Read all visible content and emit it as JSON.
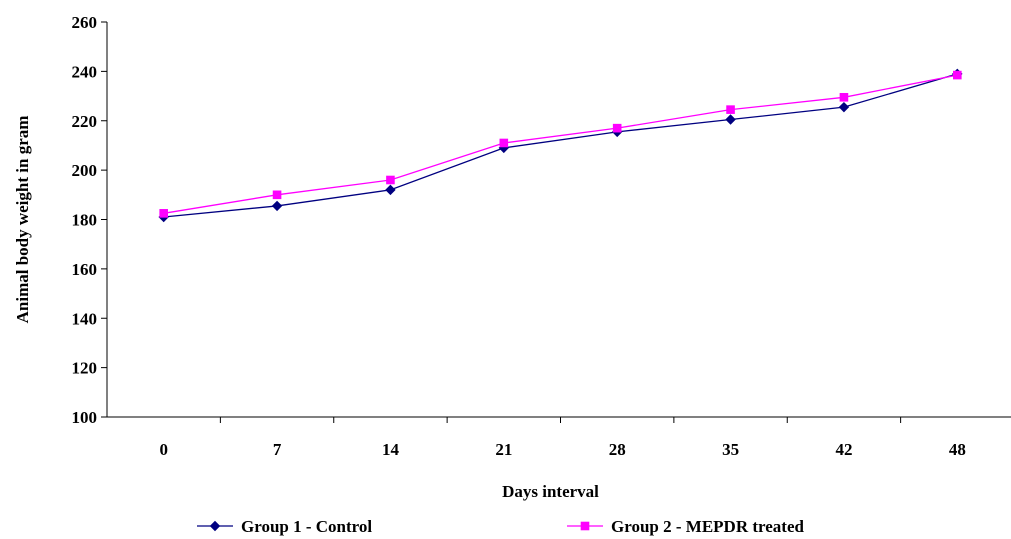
{
  "chart_data": {
    "type": "line",
    "categories": [
      "0",
      "7",
      "14",
      "21",
      "28",
      "35",
      "42",
      "48"
    ],
    "series": [
      {
        "name": "Group 1 - Control",
        "values": [
          181,
          185.5,
          192,
          209,
          215.5,
          220.5,
          225.5,
          239
        ],
        "color": "#000080",
        "marker": "diamond"
      },
      {
        "name": "Group 2 - MEPDR treated",
        "values": [
          182.5,
          190,
          196,
          211,
          217,
          224.5,
          229.5,
          238.5
        ],
        "color": "#ff00ff",
        "marker": "square"
      }
    ],
    "xlabel": "Days interval",
    "ylabel": "Animal body weight in gram",
    "ylim": [
      100,
      260
    ],
    "yticks": [
      100,
      120,
      140,
      160,
      180,
      200,
      220,
      240,
      260
    ],
    "grid": false,
    "legend_position": "bottom"
  }
}
